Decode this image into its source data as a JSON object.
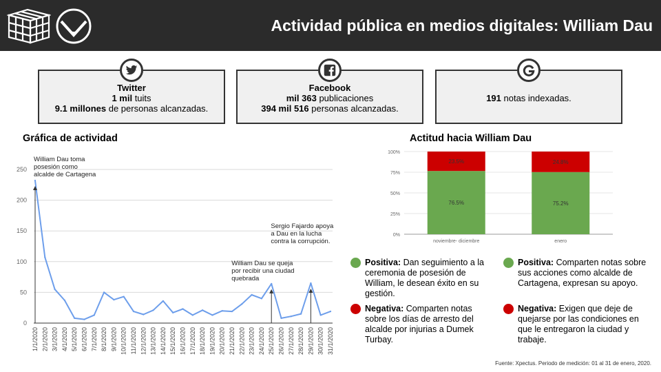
{
  "header": {
    "title": "Actividad pública en medios digitales: William Dau",
    "logo_cube_icon": "cube-logo-icon",
    "logo_circle_icon": "pie-logo-icon"
  },
  "cards": {
    "twitter": {
      "icon": "twitter-icon",
      "title": "Twitter",
      "line1_bold": "1 mil",
      "line1_rest": " tuits",
      "line2_bold": "9.1 millones",
      "line2_rest": " de personas alcanzadas."
    },
    "facebook": {
      "icon": "facebook-icon",
      "title": "Facebook",
      "line1_bold": "mil 363",
      "line1_rest": " publicaciones",
      "line2_bold": "394 mil 516",
      "line2_rest": " personas alcanzadas."
    },
    "google": {
      "icon": "google-icon",
      "line1_bold": "191",
      "line1_rest": " notas indexadas."
    }
  },
  "sections": {
    "activity_title": "Gráfica de actividad",
    "attitude_title": "Actitud hacia William Dau"
  },
  "colors": {
    "line": "#6d9eeb",
    "positive": "#6aa84f",
    "negative": "#cc0000",
    "grid": "#d9d9d9"
  },
  "chart_data": [
    {
      "type": "line",
      "x": [
        "1/1/2020",
        "2/1/2020",
        "3/1/2020",
        "4/1/2020",
        "5/1/2020",
        "6/1/2020",
        "7/1/2020",
        "8/1/2020",
        "9/1/2020",
        "10/1/2020",
        "11/1/2020",
        "12/1/2020",
        "13/1/2020",
        "14/1/2020",
        "15/1/2020",
        "16/1/2020",
        "17/1/2020",
        "18/1/2020",
        "19/1/2020",
        "20/1/2020",
        "21/1/2020",
        "22/1/2020",
        "23/1/2020",
        "24/1/2020",
        "25/1/2020",
        "26/1/2020",
        "27/1/2020",
        "28/1/2020",
        "29/1/2020",
        "30/1/2020",
        "31/1/2020"
      ],
      "values": [
        232,
        107,
        55,
        37,
        8,
        6,
        13,
        50,
        38,
        43,
        19,
        14,
        21,
        36,
        17,
        23,
        13,
        21,
        13,
        20,
        19,
        31,
        46,
        40,
        64,
        8,
        11,
        15,
        65,
        13,
        19
      ],
      "yticks": [
        0,
        50,
        100,
        150,
        200,
        250
      ],
      "ylim": [
        0,
        250
      ],
      "annotations": [
        {
          "index": 0,
          "lines": [
            "William Dau toma",
            "posesión como",
            "alcalde de Cartagena"
          ]
        },
        {
          "index": 24,
          "lines": [
            "William Dau se queja",
            "por recibir una ciudad",
            "quebrada"
          ]
        },
        {
          "index": 28,
          "lines": [
            "Sergio Fajardo apoya",
            "a Dau en la lucha",
            "contra la corrupción."
          ]
        }
      ]
    },
    {
      "type": "bar",
      "stacked": true,
      "categories": [
        "noviembre- diciembre",
        "enero"
      ],
      "series": [
        {
          "name": "Positiva",
          "values": [
            76.5,
            75.2
          ],
          "labels": [
            "76.5%",
            "75.2%"
          ]
        },
        {
          "name": "Negativa",
          "values": [
            23.5,
            24.8
          ],
          "labels": [
            "23.5%",
            "24.8%"
          ]
        }
      ],
      "ytick_labels": [
        "0%",
        "25%",
        "50%",
        "75%",
        "100%"
      ],
      "ylim": [
        0,
        100
      ]
    }
  ],
  "legend": {
    "pos_left_label": "Positiva:",
    "pos_left_text": " Dan seguimiento a la ceremonia de posesión de William, le desean éxito en su gestión.",
    "pos_right_label": "Positiva:",
    "pos_right_text": "  Comparten notas sobre sus acciones como alcalde de Cartagena, expresan su apoyo.",
    "neg_left_label": "Negativa:",
    "neg_left_text": " Comparten notas sobre los días de arresto del alcalde por injurias a Dumek Turbay.",
    "neg_right_label": "Negativa:",
    "neg_right_text": " Exigen que deje de quejarse por las condiciones en que le entregaron la ciudad y trabaje."
  },
  "footer": {
    "text": "Fuente: Xpectus. Periodo de medición:  01 al 31 de enero, 2020."
  }
}
